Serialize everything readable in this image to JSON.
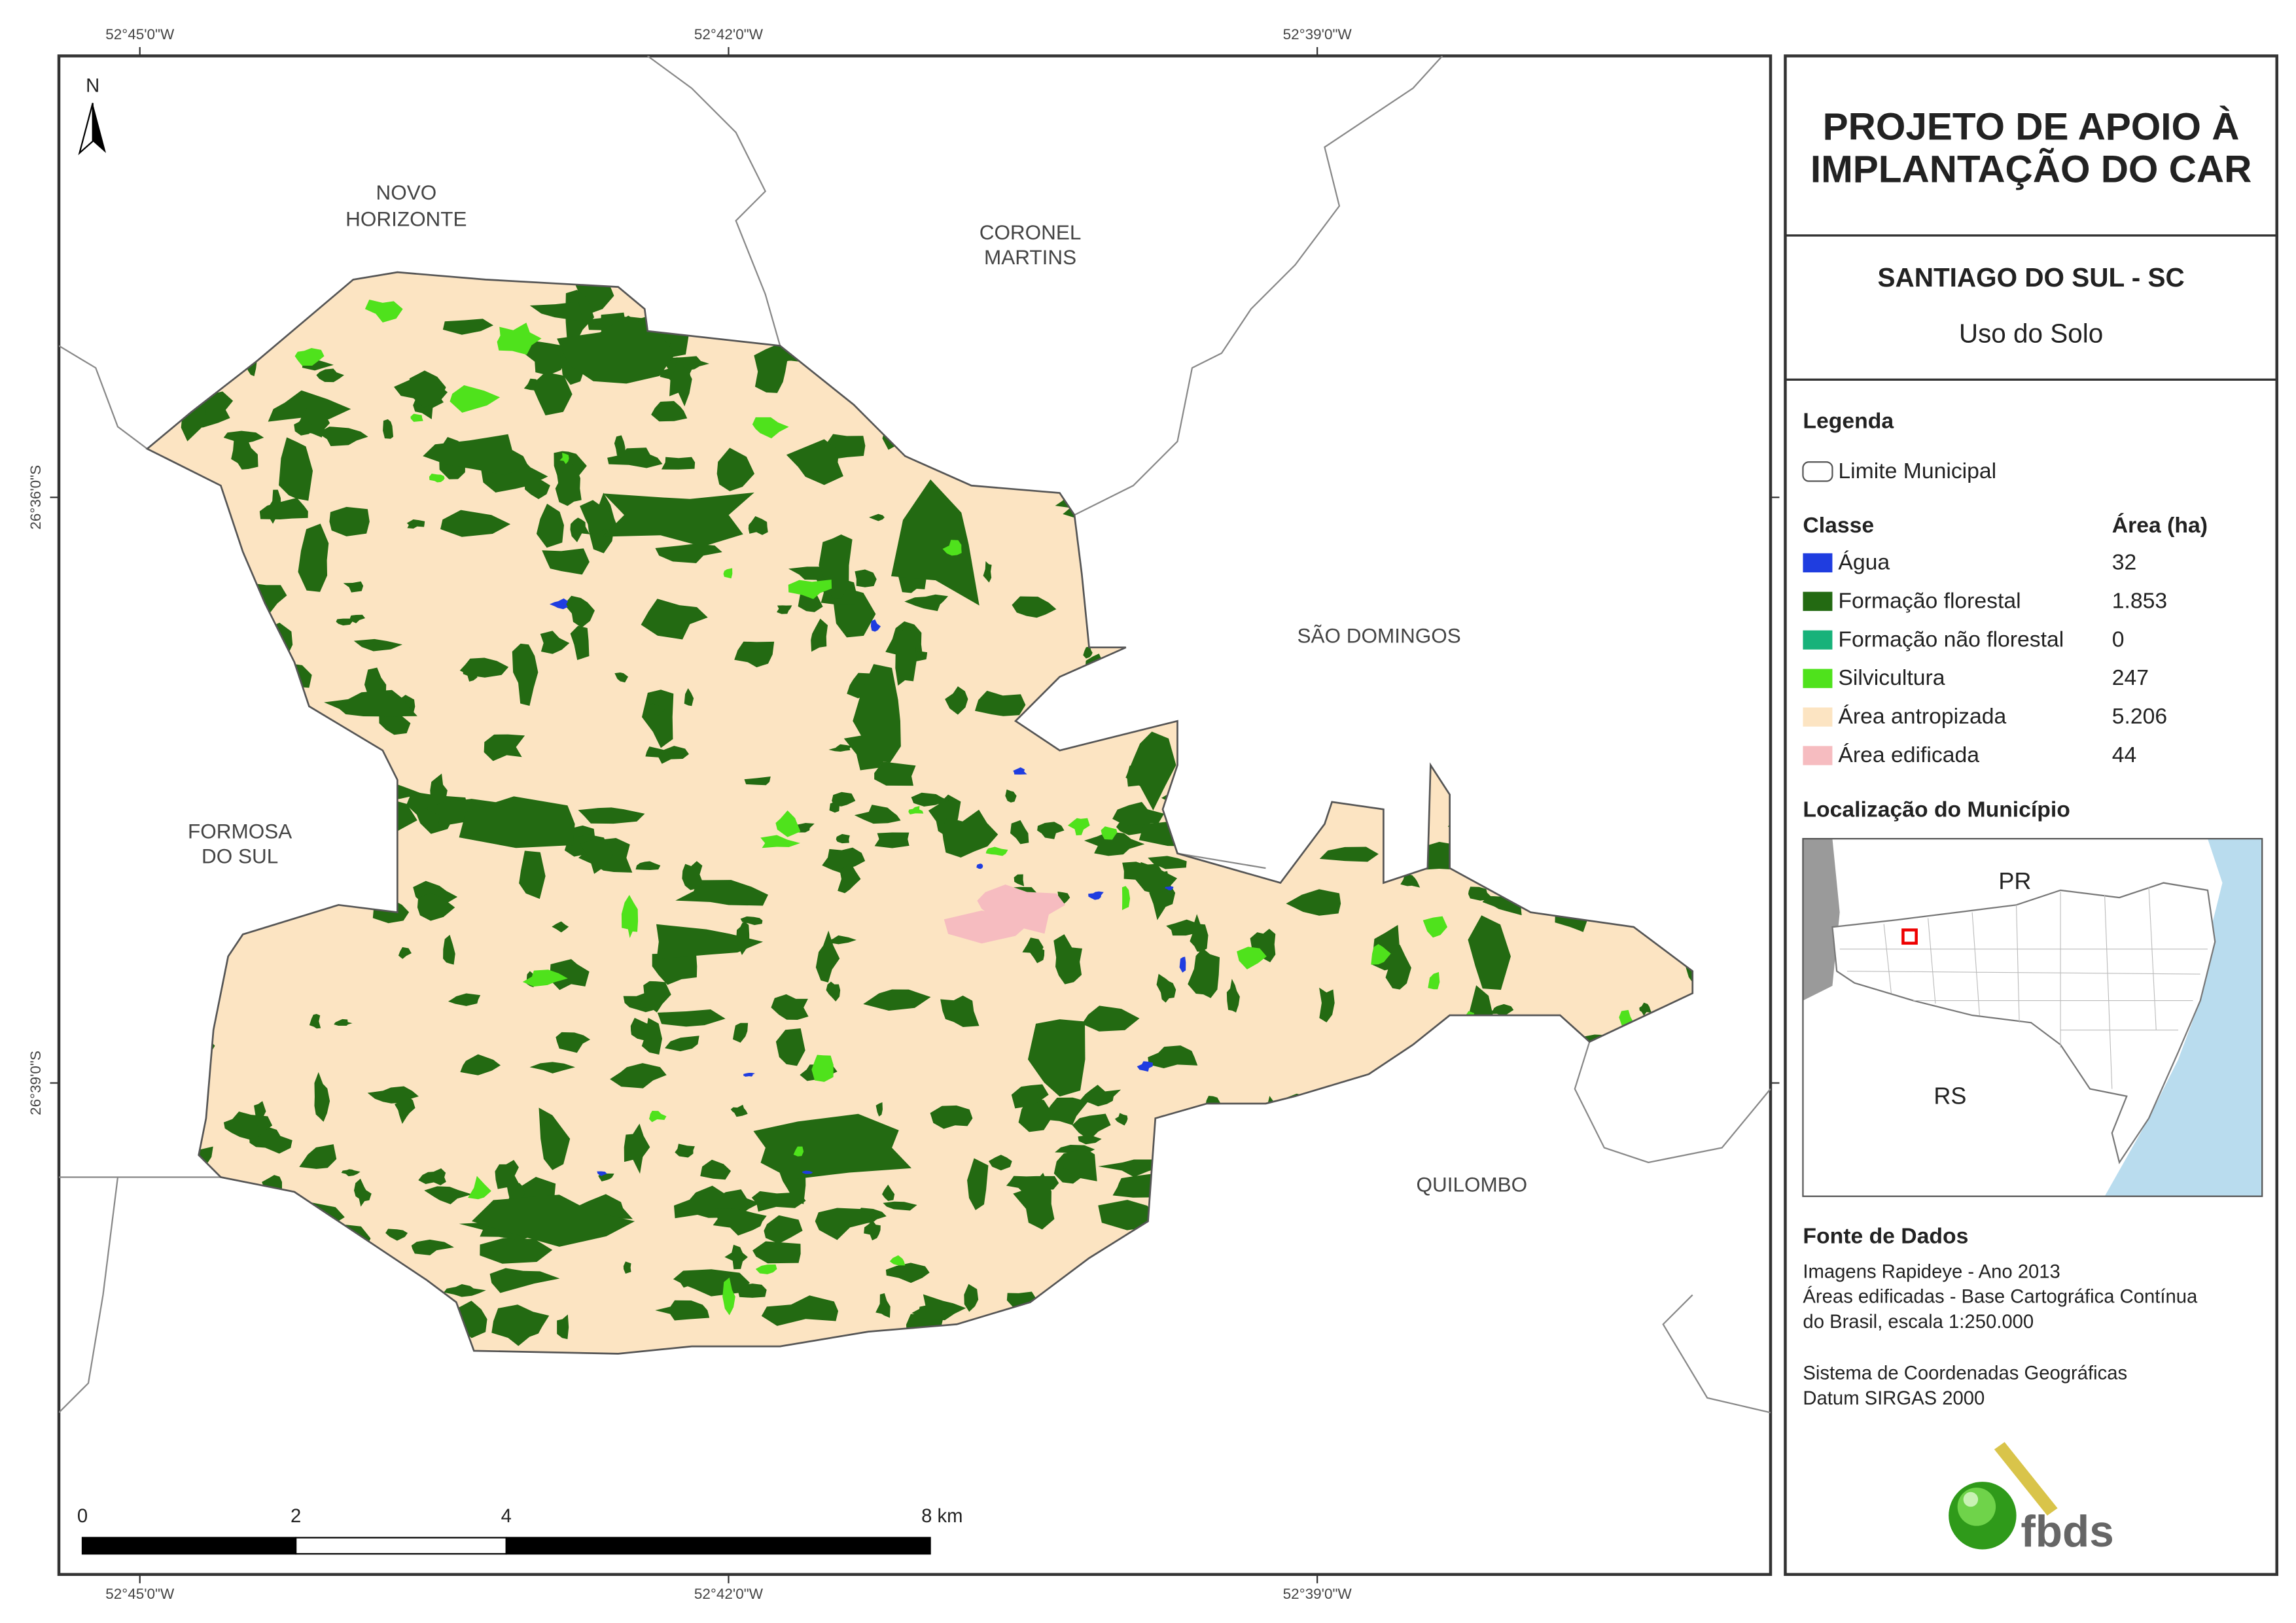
{
  "coordinates": {
    "top": [
      "52°45'0\"W",
      "52°42'0\"W",
      "52°39'0\"W"
    ],
    "bottom": [
      "52°45'0\"W",
      "52°42'0\"W",
      "52°39'0\"W"
    ],
    "left": [
      "26°36'0\"S",
      "26°39'0\"S"
    ]
  },
  "north": "N",
  "places": {
    "novo_horizonte": [
      "NOVO",
      "HORIZONTE"
    ],
    "coronel_martins": [
      "CORONEL",
      "MARTINS"
    ],
    "sao_domingos": "SÃO DOMINGOS",
    "formosa_do_sul": [
      "FORMOSA",
      "DO SUL"
    ],
    "quilombo": "QUILOMBO"
  },
  "scale_bar": [
    "0",
    "2",
    "4",
    "8 km"
  ],
  "panel": {
    "title": [
      "PROJETO DE APOIO À",
      "IMPLANTAÇÃO DO CAR"
    ],
    "municipality": "SANTIAGO DO SUL - SC",
    "subtitle": "Uso do Solo"
  },
  "legend": {
    "title": "Legenda",
    "boundary": "Limite Municipal",
    "class_header": "Classe",
    "area_header": "Área (ha)",
    "rows": [
      [
        "Água",
        "32"
      ],
      [
        "Formação florestal",
        "1.853"
      ],
      [
        "Formação não florestal",
        "0"
      ],
      [
        "Silvicultura",
        "247"
      ],
      [
        "Área antropizada",
        "5.206"
      ],
      [
        "Área edificada",
        "44"
      ]
    ]
  },
  "inset": {
    "title": "Localização do Município",
    "labels": [
      "PR",
      "RS"
    ]
  },
  "sources": {
    "title": "Fonte de Dados",
    "lines": [
      "Imagens Rapideye - Ano 2013",
      "Áreas edificadas - Base Cartográfica Contínua",
      "do Brasil, escala 1:250.000",
      "Sistema de Coordenadas Geográficas",
      "Datum SIRGAS 2000"
    ]
  },
  "logo": "fbds"
}
